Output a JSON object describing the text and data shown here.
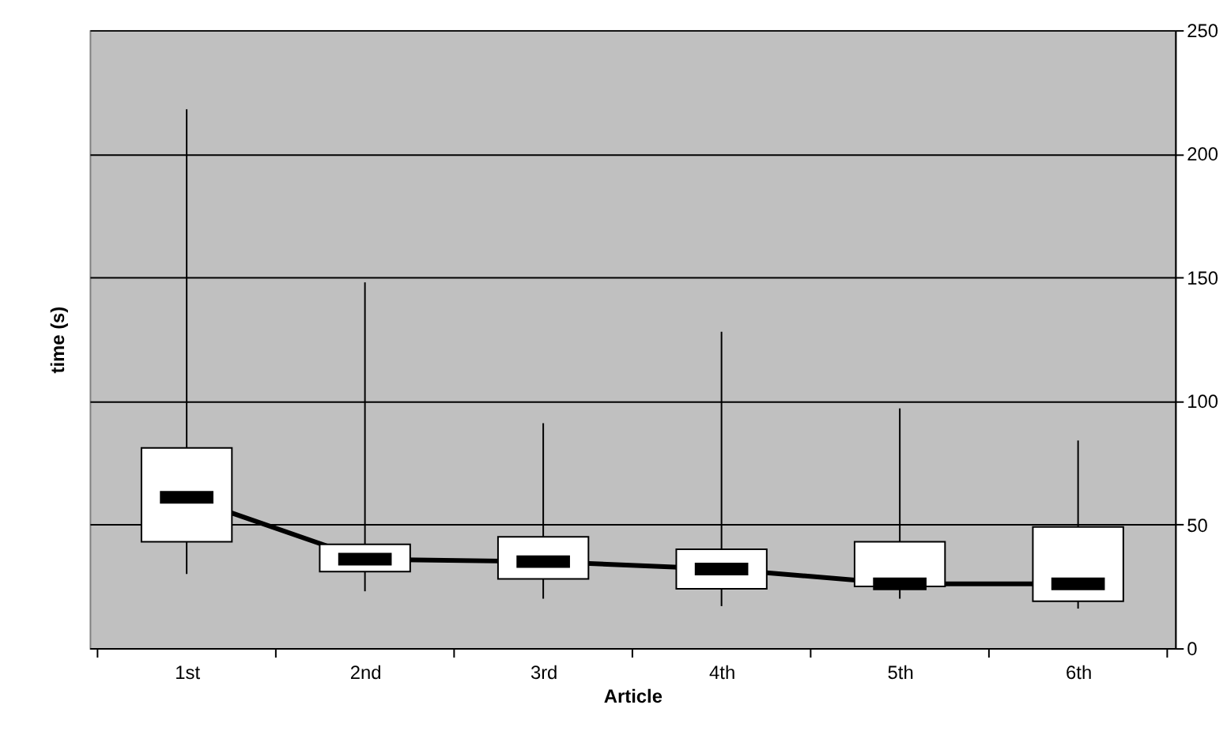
{
  "chart_data": {
    "type": "box",
    "xlabel": "Article",
    "ylabel": "time (s)",
    "categories": [
      "1st",
      "2nd",
      "3rd",
      "4th",
      "5th",
      "6th"
    ],
    "boxes": [
      {
        "low": 30,
        "q1": 43,
        "median": 61,
        "q3": 81,
        "high": 218
      },
      {
        "low": 23,
        "q1": 31,
        "median": 36,
        "q3": 42,
        "high": 148
      },
      {
        "low": 20,
        "q1": 28,
        "median": 35,
        "q3": 45,
        "high": 91
      },
      {
        "low": 17,
        "q1": 24,
        "median": 32,
        "q3": 40,
        "high": 128
      },
      {
        "low": 20,
        "q1": 25,
        "median": 26,
        "q3": 43,
        "high": 97
      },
      {
        "low": 16,
        "q1": 19,
        "median": 26,
        "q3": 49,
        "high": 84
      }
    ],
    "series": [
      {
        "type": "line",
        "color": "#000000",
        "values": [
          61,
          36,
          35,
          32,
          26,
          26
        ]
      }
    ],
    "color": "#ffffff",
    "ylim": [
      0,
      250
    ],
    "yticks": [
      0,
      50,
      100,
      150,
      200,
      250
    ],
    "grid": "y"
  }
}
